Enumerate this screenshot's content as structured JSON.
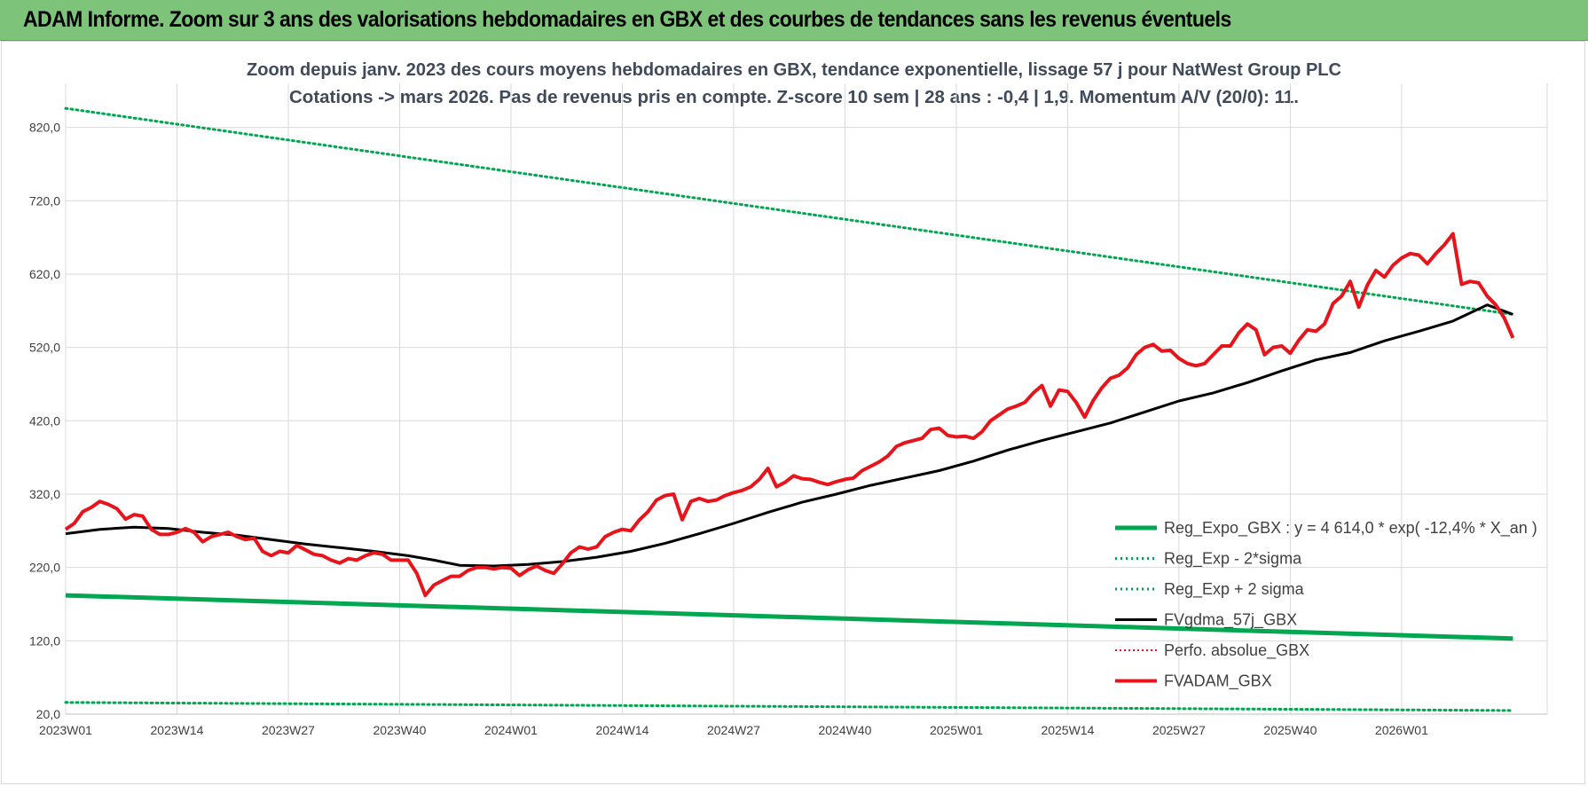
{
  "banner": {
    "title": "ADAM Informe. Zoom sur 3 ans des valorisations hebdomadaires en GBX et des courbes de tendances sans les revenus éventuels"
  },
  "colors": {
    "banner_bg": "#7dc47a",
    "reg_expo": "#00a650",
    "fvgdma": "#000000",
    "fvadam": "#e8141c",
    "perfo": "#e8141c",
    "grid": "#d9d9d9"
  },
  "chart_data": {
    "type": "line",
    "title_lines": [
      "Zoom depuis janv. 2023 des cours moyens hebdomadaires en GBX, tendance exponentielle, lissage 57 j pour NatWest Group PLC",
      "Cotations -> mars 2026. Pas de revenus pris en compte. Z-score 10 sem | 28 ans : -0,4 | 1,9. Momentum A/V (20/0): 11."
    ],
    "ylim": [
      20,
      880
    ],
    "y_ticks": [
      "20,0",
      "120,0",
      "220,0",
      "320,0",
      "420,0",
      "520,0",
      "620,0",
      "720,0",
      "820,0"
    ],
    "x_ticks": [
      "2023W01",
      "2023W14",
      "2023W27",
      "2023W40",
      "2024W01",
      "2024W14",
      "2024W27",
      "2024W40",
      "2025W01",
      "2025W14",
      "2025W27",
      "2025W40",
      "2026W01"
    ],
    "x_range_weeks": [
      0,
      169
    ],
    "grid": true,
    "legend_position": "bottom-right",
    "legend": [
      "Reg_Expo_GBX : y = 4 614,0 * exp( -12,4% *  X_an )",
      "Reg_Exp - 2*sigma",
      "Reg_Exp + 2 sigma",
      "FVgdma_57j_GBX",
      "Perfo. absolue_GBX",
      "FVADAM_GBX"
    ],
    "series": [
      {
        "name": "Reg_Expo_GBX : y = 4 614,0 * exp( -12,4% *  X_an )",
        "style": "solid-thick-green",
        "x": [
          0,
          169
        ],
        "values": [
          182,
          123
        ]
      },
      {
        "name": "Reg_Exp - 2*sigma",
        "style": "dotted-green",
        "x": [
          0,
          169
        ],
        "values": [
          36,
          25
        ]
      },
      {
        "name": "Reg_Exp + 2 sigma",
        "style": "dotted-green",
        "x": [
          0,
          169
        ],
        "values": [
          846,
          565
        ]
      },
      {
        "name": "FVgdma_57j_GBX",
        "style": "solid-black",
        "x": [
          0,
          4,
          8,
          12,
          16,
          20,
          24,
          28,
          32,
          36,
          40,
          43,
          46,
          50,
          54,
          58,
          62,
          66,
          70,
          74,
          78,
          82,
          86,
          90,
          94,
          98,
          102,
          106,
          110,
          114,
          118,
          122,
          126,
          130,
          134,
          138,
          142,
          146,
          150,
          154,
          158,
          162,
          166,
          169
        ],
        "values": [
          266,
          272,
          275,
          273,
          268,
          264,
          258,
          252,
          247,
          242,
          236,
          230,
          223,
          222,
          224,
          228,
          234,
          242,
          253,
          266,
          280,
          295,
          309,
          320,
          332,
          342,
          352,
          365,
          380,
          393,
          405,
          417,
          432,
          447,
          458,
          472,
          488,
          503,
          513,
          529,
          542,
          556,
          578,
          565
        ]
      },
      {
        "name": "FVADAM_GBX",
        "style": "solid-thick-red",
        "x": [
          0,
          1,
          2,
          3,
          4,
          5,
          6,
          7,
          8,
          9,
          10,
          11,
          12,
          13,
          14,
          15,
          16,
          17,
          18,
          19,
          20,
          21,
          22,
          23,
          24,
          25,
          26,
          27,
          28,
          29,
          30,
          31,
          32,
          33,
          34,
          35,
          36,
          37,
          38,
          39,
          40,
          41,
          42,
          43,
          44,
          45,
          46,
          47,
          48,
          49,
          50,
          51,
          52,
          53,
          54,
          55,
          56,
          57,
          58,
          59,
          60,
          61,
          62,
          63,
          64,
          65,
          66,
          67,
          68,
          69,
          70,
          71,
          72,
          73,
          74,
          75,
          76,
          77,
          78,
          79,
          80,
          81,
          82,
          83,
          84,
          85,
          86,
          87,
          88,
          89,
          90,
          91,
          92,
          93,
          94,
          95,
          96,
          97,
          98,
          99,
          100,
          101,
          102,
          103,
          104,
          105,
          106,
          107,
          108,
          109,
          110,
          111,
          112,
          113,
          114,
          115,
          116,
          117,
          118,
          119,
          120,
          121,
          122,
          123,
          124,
          125,
          126,
          127,
          128,
          129,
          130,
          131,
          132,
          133,
          134,
          135,
          136,
          137,
          138,
          139,
          140,
          141,
          142,
          143,
          144,
          145,
          146,
          147,
          148,
          149,
          150,
          151,
          152,
          153,
          154,
          155,
          156,
          157,
          158,
          159,
          160,
          161,
          162,
          163,
          164,
          165,
          166,
          167,
          168,
          169
        ],
        "values": [
          272,
          280,
          296,
          302,
          310,
          306,
          300,
          286,
          292,
          290,
          272,
          265,
          265,
          268,
          273,
          268,
          255,
          262,
          265,
          268,
          262,
          258,
          260,
          242,
          236,
          242,
          240,
          250,
          244,
          238,
          236,
          230,
          226,
          232,
          230,
          236,
          240,
          238,
          230,
          230,
          230,
          212,
          182,
          196,
          202,
          208,
          208,
          216,
          220,
          220,
          218,
          220,
          219,
          209,
          217,
          222,
          216,
          212,
          225,
          240,
          248,
          245,
          248,
          262,
          268,
          272,
          270,
          285,
          296,
          312,
          318,
          320,
          285,
          310,
          314,
          310,
          312,
          318,
          322,
          325,
          330,
          340,
          355,
          330,
          336,
          345,
          341,
          340,
          336,
          333,
          337,
          340,
          342,
          352,
          358,
          364,
          372,
          385,
          390,
          393,
          396,
          408,
          410,
          400,
          398,
          399,
          396,
          405,
          420,
          428,
          436,
          440,
          445,
          458,
          468,
          440,
          462,
          460,
          445,
          425,
          448,
          465,
          478,
          482,
          492,
          510,
          520,
          524,
          515,
          516,
          505,
          498,
          495,
          498,
          510,
          522,
          522,
          540,
          552,
          544,
          510,
          520,
          522,
          512,
          530,
          544,
          542,
          552,
          580,
          590,
          610,
          575,
          605,
          625,
          616,
          632,
          642,
          648,
          646,
          634,
          648,
          660,
          675,
          606,
          610,
          608,
          590,
          578,
          560,
          533
        ]
      }
    ]
  }
}
